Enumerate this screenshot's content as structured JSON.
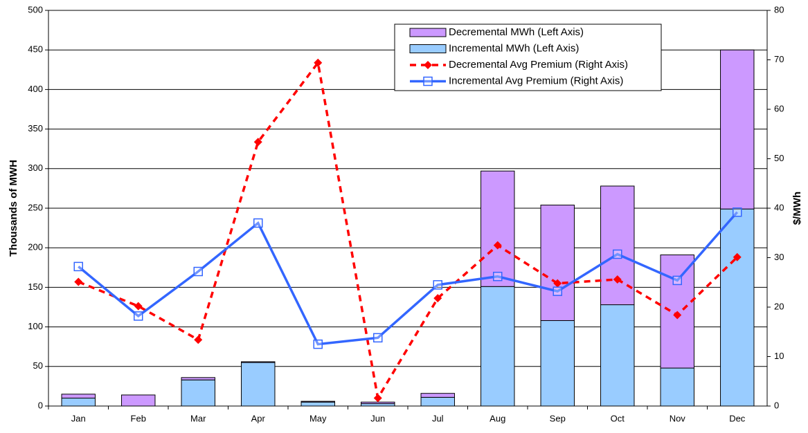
{
  "chart_data": {
    "type": "bar",
    "stacked": true,
    "y_label": "Thousands of MWH",
    "y2_label": "$/MWh",
    "categories": [
      "Jan",
      "Feb",
      "Mar",
      "Apr",
      "May",
      "Jun",
      "Jul",
      "Aug",
      "Sep",
      "Oct",
      "Nov",
      "Dec"
    ],
    "series": [
      {
        "name": "Decremental MWh (Left Axis)",
        "type": "bar",
        "color": "#cc99ff",
        "values": [
          5,
          14,
          3,
          1,
          1,
          2,
          5,
          146,
          146,
          150,
          143,
          201
        ]
      },
      {
        "name": "Incremental MWh (Left Axis)",
        "type": "bar",
        "color": "#99ccff",
        "values": [
          10,
          0,
          33,
          55,
          5,
          3,
          11,
          151,
          108,
          128,
          48,
          249
        ]
      },
      {
        "name": "Decremental Avg Premium (Right Axis)",
        "type": "line",
        "axis": "y2",
        "color": "#ff0000",
        "dashed": true,
        "marker": "diamond",
        "values": [
          25.1,
          20.2,
          13.4,
          53.4,
          69.4,
          1.6,
          21.8,
          32.5,
          24.8,
          25.6,
          18.4,
          30.1
        ]
      },
      {
        "name": "Incremental Avg Premium (Right Axis)",
        "type": "line",
        "axis": "y2",
        "color": "#3366ff",
        "dashed": false,
        "marker": "square",
        "values": [
          28.2,
          18.2,
          27.2,
          37,
          12.5,
          13.8,
          24.5,
          26.2,
          23.2,
          30.7,
          25.4,
          39.2
        ]
      }
    ],
    "ylim": [
      0,
      500
    ],
    "yticks": [
      0,
      50,
      100,
      150,
      200,
      250,
      300,
      350,
      400,
      450,
      500
    ],
    "y2lim": [
      0,
      80
    ],
    "y2ticks": [
      0,
      10,
      20,
      30,
      40,
      50,
      60,
      70,
      80
    ],
    "grid": true,
    "legend": "top-right"
  }
}
